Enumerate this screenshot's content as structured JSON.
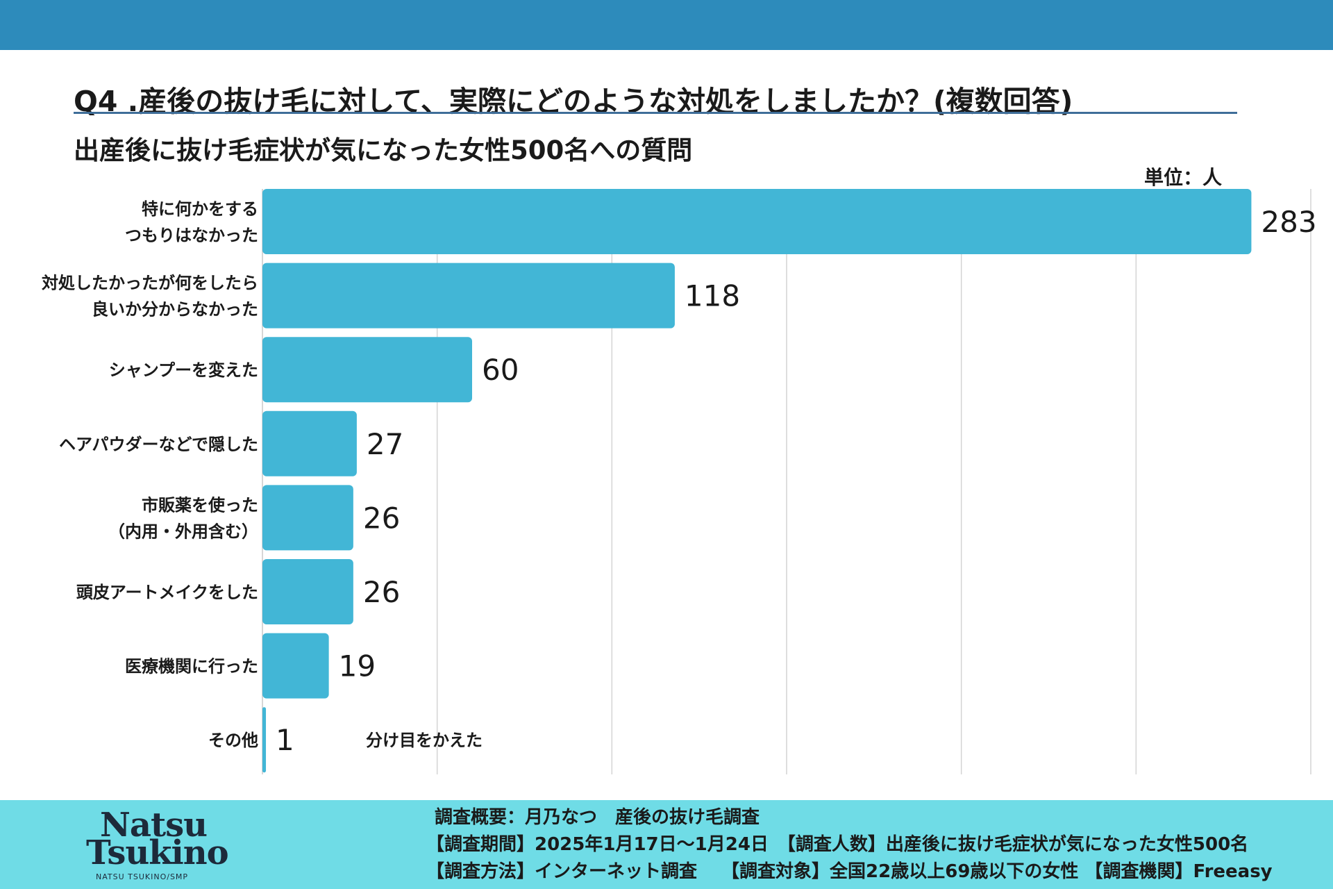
{
  "header": {
    "question": "Q4 .産後の抜け毛に対して、実際にどのような対処をしましたか？(複数回答)",
    "subtitle": "出産後に抜け毛症状が気になった女性500名への質問",
    "unit": "単位：人"
  },
  "chart_data": {
    "type": "bar",
    "orientation": "horizontal",
    "title": "Q4 .産後の抜け毛に対して、実際にどのような対処をしましたか？(複数回答)",
    "unit": "単位：人",
    "categories": [
      [
        "特に何かをする",
        "つもりはなかった"
      ],
      [
        "対処したかったが何をしたら",
        "良いか分からなかった"
      ],
      [
        "シャンプーを変えた"
      ],
      [
        "ヘアパウダーなどで隠した"
      ],
      [
        "市販薬を使った",
        "（内用・外用含む）"
      ],
      [
        "頭皮アートメイクをした"
      ],
      [
        "医療機関に行った"
      ],
      [
        "その他"
      ]
    ],
    "values": [
      283,
      118,
      60,
      27,
      26,
      26,
      19,
      1
    ],
    "annotations": [
      {
        "category_index": 7,
        "text": "分け目をかえた"
      }
    ],
    "xlim": [
      0,
      300
    ],
    "gridlines_at": [
      50,
      100,
      150,
      200,
      250,
      300
    ],
    "grid": true,
    "color": "#42b6d6"
  },
  "footer": {
    "logo_line1": "Natsu",
    "logo_line2": "Tsukino",
    "logo_line3": "NATSU TSUKINO/SMP",
    "line1": "調査概要：月乃なつ　産後の抜け毛調査",
    "line2": "【調査期間】2025年1月17日〜1月24日　【調査人数】出産後に抜け毛症状が気になった女性500名",
    "line3": "【調査方法】インターネット調査　 【調査対象】全国22歳以上69歳以下の女性 【調査機関】Freeasy"
  }
}
